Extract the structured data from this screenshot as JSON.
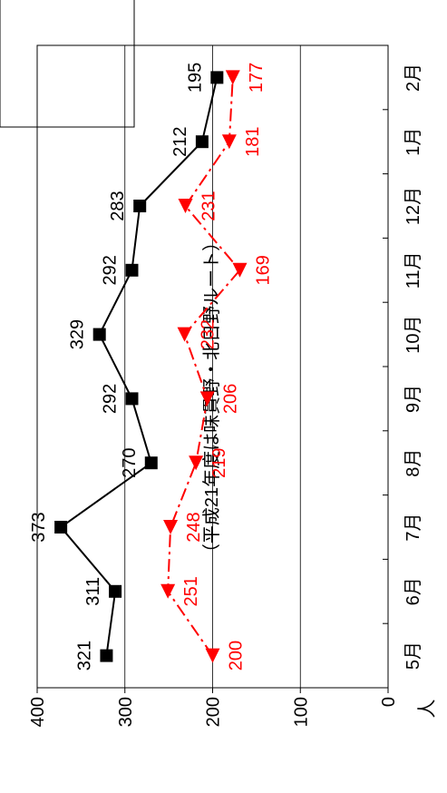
{
  "chart_data": {
    "type": "line",
    "subtitle": "（平成21年度は味貫野・北日野ルート）",
    "ylabel": "人",
    "categories": [
      "5月",
      "6月",
      "7月",
      "8月",
      "9月",
      "10月",
      "11月",
      "12月",
      "1月",
      "2月"
    ],
    "ylim": [
      0,
      400
    ],
    "yticks": [
      "0",
      "100",
      "200",
      "300",
      "400"
    ],
    "grid": true,
    "series": [
      {
        "values": [
          321,
          311,
          373,
          270,
          292,
          329,
          292,
          283,
          212,
          195
        ],
        "labels": [
          "321",
          "311",
          "373",
          "270",
          "292",
          "329",
          "292",
          "283",
          "212",
          "195"
        ],
        "color": "#000000",
        "marker": "square",
        "line": "solid"
      },
      {
        "values": [
          200,
          251,
          248,
          219,
          206,
          232,
          169,
          231,
          181,
          177
        ],
        "labels": [
          "200",
          "251",
          "248",
          "219",
          "206",
          "232",
          "169",
          "231",
          "181",
          "177"
        ],
        "color": "#ff0000",
        "marker": "triangle",
        "line": "dash-dot"
      }
    ]
  }
}
